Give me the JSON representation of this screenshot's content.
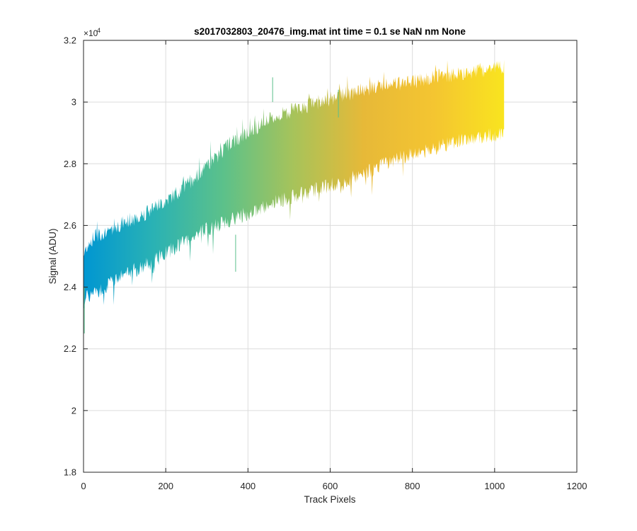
{
  "chart_data": {
    "type": "area",
    "title": "s2017032803_20476_img.mat int time = 0.1 se  NaN nm None",
    "xlabel": "Track Pixels",
    "ylabel": "Signal (ADU)",
    "y_multiplier_label": "×10",
    "y_multiplier_exponent": "4",
    "xlim": [
      0,
      1200
    ],
    "ylim": [
      18000,
      32000
    ],
    "x_ticks": [
      0,
      200,
      400,
      600,
      800,
      1000,
      1200
    ],
    "x_tick_labels": [
      "0",
      "200",
      "400",
      "600",
      "800",
      "1000",
      "1200"
    ],
    "y_ticks": [
      18000,
      20000,
      22000,
      24000,
      26000,
      28000,
      30000,
      32000
    ],
    "y_tick_labels": [
      "1.8",
      "2",
      "2.2",
      "2.4",
      "2.6",
      "2.8",
      "3",
      "3.2"
    ],
    "grid": true,
    "series": [
      {
        "x": [
          0,
          10,
          25,
          50,
          100,
          150,
          200,
          250,
          300,
          350,
          400,
          450,
          500,
          550,
          600,
          650,
          700,
          750,
          800,
          850,
          900,
          950,
          1000,
          1023
        ],
        "upper": [
          25000,
          25400,
          25600,
          25800,
          26100,
          26400,
          26800,
          27300,
          27900,
          28600,
          29000,
          29400,
          29700,
          29900,
          30100,
          30300,
          30450,
          30550,
          30650,
          30800,
          30900,
          31000,
          31100,
          31150
        ],
        "lower": [
          23500,
          23700,
          23800,
          24000,
          24400,
          24700,
          25100,
          25500,
          25900,
          26100,
          26400,
          26700,
          26900,
          27100,
          27300,
          27500,
          27800,
          28100,
          28300,
          28500,
          28700,
          28800,
          28950,
          29000
        ]
      }
    ],
    "colormap": [
      "#0096d2",
      "#2ab2b4",
      "#5cc18a",
      "#a7c35a",
      "#e7b938",
      "#f4c531",
      "#f9e41f"
    ]
  }
}
